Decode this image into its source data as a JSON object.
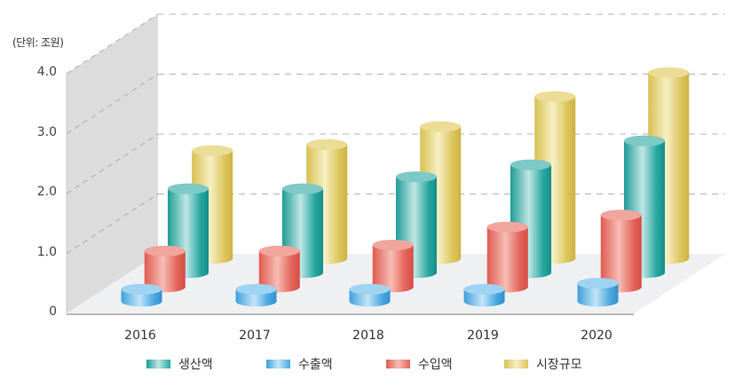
{
  "chart_data": {
    "type": "bar",
    "subtype": "3d-cylinder",
    "title": "",
    "unit_label": "(단위: 조원)",
    "xlabel": "",
    "ylabel": "조원",
    "ylim": [
      0,
      4.0
    ],
    "yticks": [
      "0",
      "1.0",
      "2.0",
      "3.0",
      "4.0"
    ],
    "grid": true,
    "legend_position": "bottom",
    "categories": [
      "2016",
      "2017",
      "2018",
      "2019",
      "2020"
    ],
    "series": [
      {
        "name": "생산액",
        "color": "#2aa9a3",
        "values": [
          1.4,
          1.4,
          1.6,
          1.8,
          2.2
        ]
      },
      {
        "name": "수출액",
        "color": "#4aa8e0",
        "values": [
          0.2,
          0.2,
          0.2,
          0.2,
          0.3
        ]
      },
      {
        "name": "수입액",
        "color": "#e4645a",
        "values": [
          0.6,
          0.6,
          0.7,
          1.0,
          1.2
        ]
      },
      {
        "name": "시장규모",
        "color": "#dcc55a",
        "values": [
          1.8,
          1.9,
          2.2,
          2.7,
          3.1
        ]
      }
    ]
  },
  "legend": [
    {
      "label": "생산액",
      "color": "#2aa9a3"
    },
    {
      "label": "수출액",
      "color": "#4aa8e0"
    },
    {
      "label": "수입액",
      "color": "#e4645a"
    },
    {
      "label": "시장규모",
      "color": "#dcc55a"
    }
  ]
}
